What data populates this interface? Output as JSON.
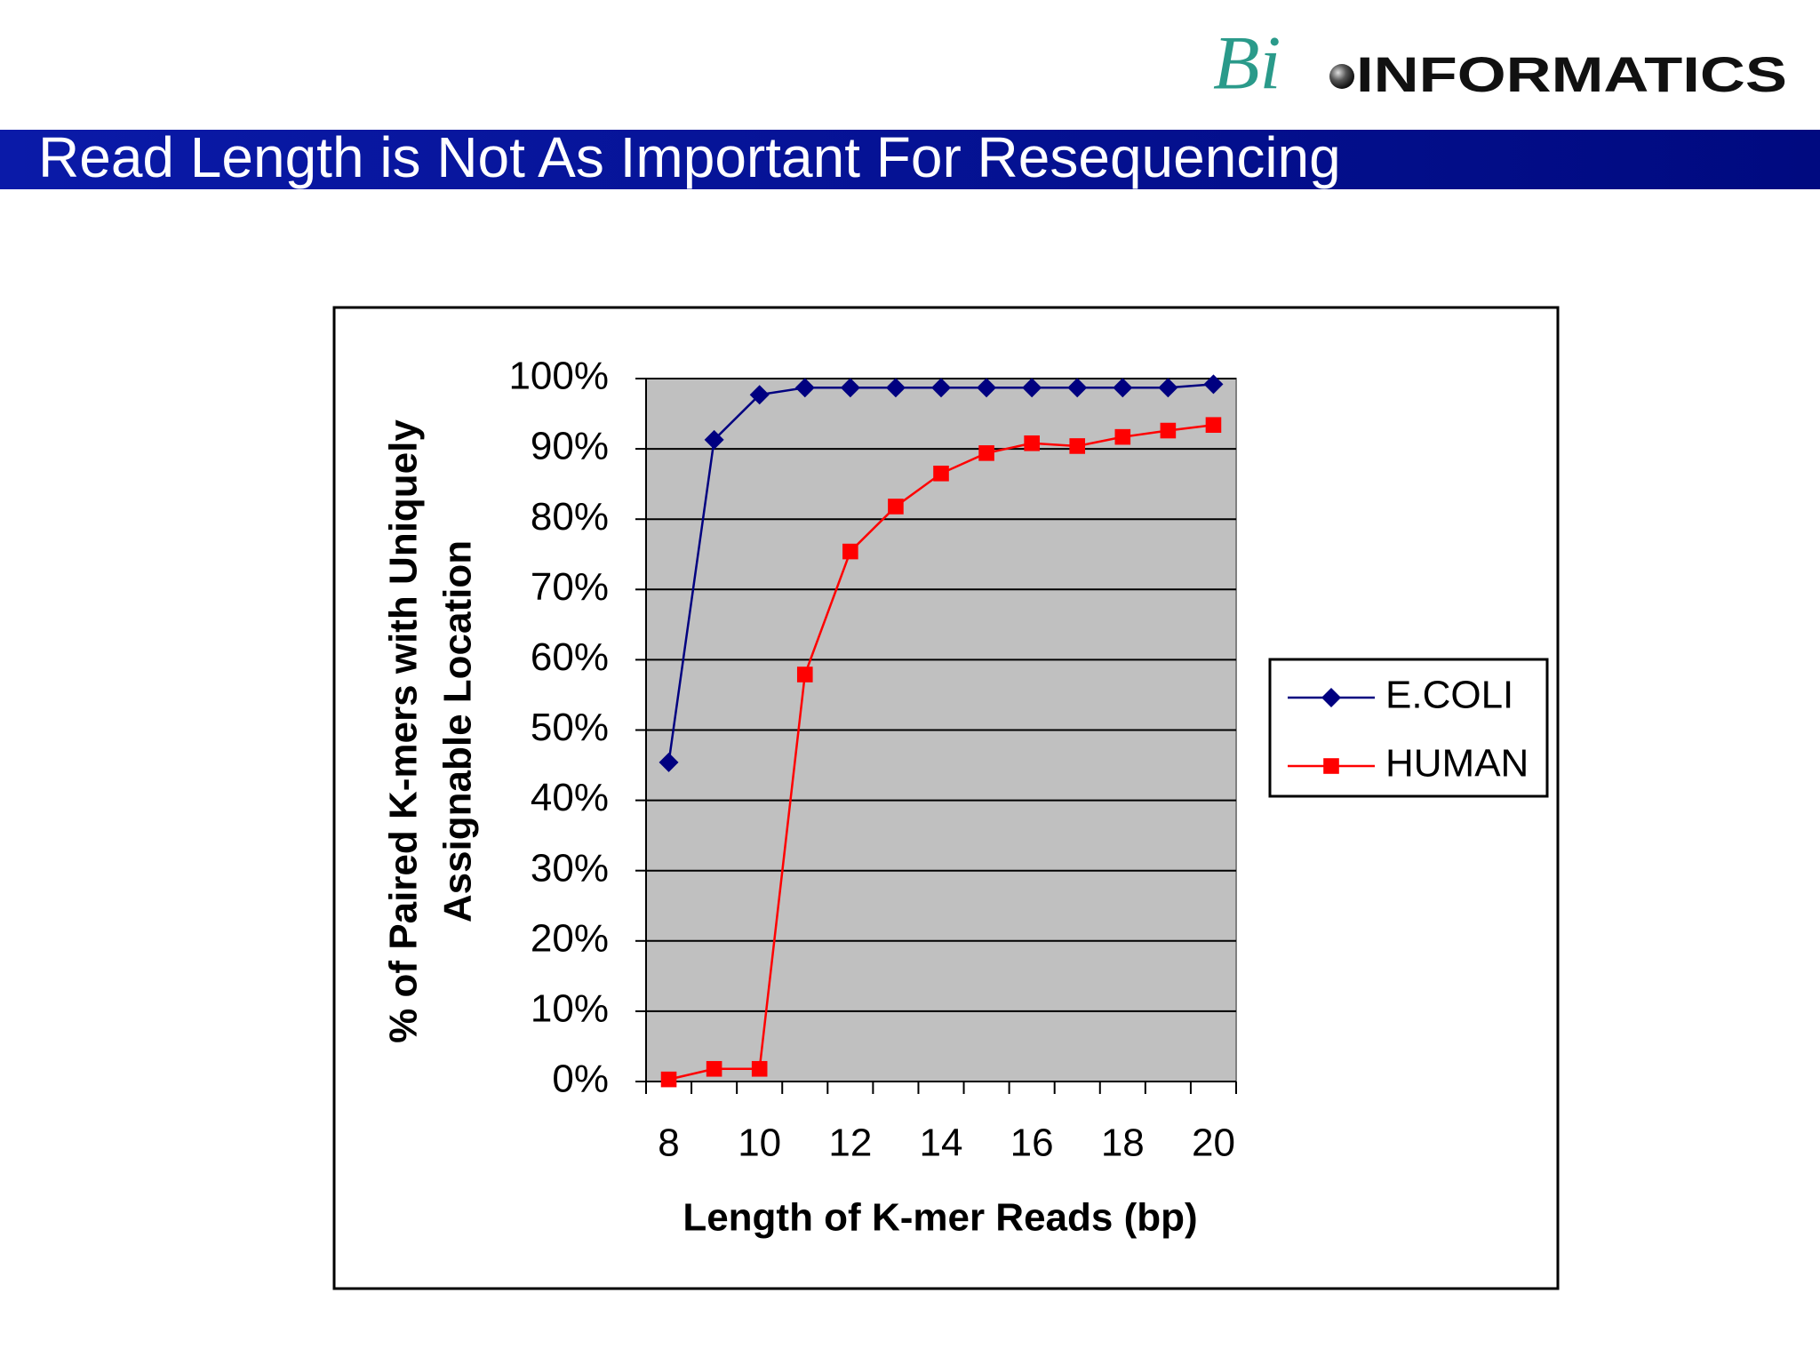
{
  "slide": {
    "title": "Read Length is Not As Important For Resequencing",
    "logo_prefix": "Bi",
    "logo_main": "INFORMATICS"
  },
  "chart_data": {
    "type": "line",
    "x_label": "Length of K-mer Reads (bp)",
    "y_label": [
      "% of Paired K-mers with Uniquely",
      "Assignable Location"
    ],
    "categories": [
      8,
      null,
      10,
      null,
      12,
      null,
      14,
      null,
      16,
      null,
      18,
      null,
      20
    ],
    "series": [
      {
        "name": "E.COLI",
        "color": "#000080",
        "marker": "diamond",
        "values": [
          45.4,
          91.3,
          97.7,
          98.7,
          98.7,
          98.7,
          98.7,
          98.7,
          98.7,
          98.7,
          98.7,
          98.7,
          99.2
        ]
      },
      {
        "name": "HUMAN",
        "color": "#ff0000",
        "marker": "square",
        "values": [
          0.3,
          1.8,
          1.8,
          57.9,
          75.4,
          81.8,
          86.5,
          89.4,
          90.8,
          90.4,
          91.7,
          92.6,
          93.4
        ]
      }
    ],
    "ylim": [
      0,
      100
    ],
    "yticks": [
      {
        "value": 0,
        "label": "0%"
      },
      {
        "value": 10,
        "label": "10%"
      },
      {
        "value": 20,
        "label": "20%"
      },
      {
        "value": 30,
        "label": "30%"
      },
      {
        "value": 40,
        "label": "40%"
      },
      {
        "value": 50,
        "label": "50%"
      },
      {
        "value": 60,
        "label": "60%"
      },
      {
        "value": 70,
        "label": "70%"
      },
      {
        "value": 80,
        "label": "80%"
      },
      {
        "value": 90,
        "label": "90%"
      },
      {
        "value": 100,
        "label": "100%"
      }
    ],
    "grid": true,
    "plot_background": "#c0c0c0",
    "legend": "right"
  }
}
